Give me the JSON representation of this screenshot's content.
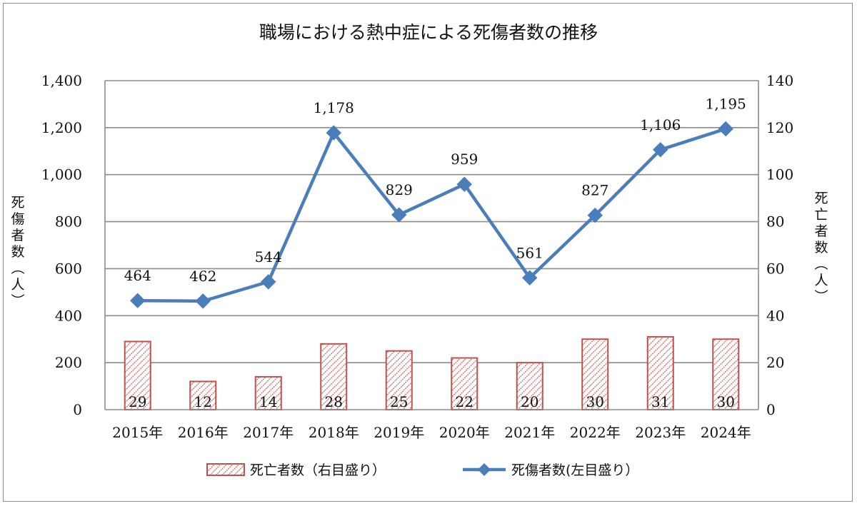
{
  "chart_data": {
    "type": "bar+line",
    "title": "職場における熱中症による死傷者数の推移",
    "categories": [
      "2015年",
      "2016年",
      "2017年",
      "2018年",
      "2019年",
      "2020年",
      "2021年",
      "2022年",
      "2023年",
      "2024年"
    ],
    "series": [
      {
        "name": "死亡者数（右目盛り）",
        "type": "bar",
        "axis": "right",
        "values": [
          29,
          12,
          14,
          28,
          25,
          22,
          20,
          30,
          31,
          30
        ],
        "color": "#c0504d"
      },
      {
        "name": "死傷者数(左目盛り）",
        "type": "line",
        "axis": "left",
        "values": [
          464,
          462,
          544,
          1178,
          829,
          959,
          561,
          827,
          1106,
          1195
        ],
        "color": "#4a7ebb"
      }
    ],
    "left_axis": {
      "label": "死傷者数(人)",
      "ylim": [
        0,
        1400
      ],
      "ticks": [
        "0",
        "200",
        "400",
        "600",
        "800",
        "1,000",
        "1,200",
        "1,400"
      ]
    },
    "right_axis": {
      "label": "死亡者数(人)",
      "ylim": [
        0,
        140
      ],
      "ticks": [
        "0",
        "20",
        "40",
        "60",
        "80",
        "100",
        "120",
        "140"
      ]
    },
    "line_data_labels": [
      "464",
      "462",
      "544",
      "1,178",
      "829",
      "959",
      "561",
      "827",
      "1,106",
      "1,195"
    ],
    "bar_data_labels": [
      "29",
      "12",
      "14",
      "28",
      "25",
      "22",
      "20",
      "30",
      "31",
      "30"
    ],
    "grid": true,
    "legend": "bottom-center"
  }
}
